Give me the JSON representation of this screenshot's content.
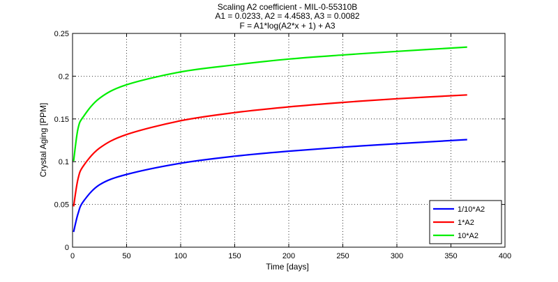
{
  "chart_data": {
    "type": "line",
    "title": "Scaling A2 coefficient - MIL-0-55310B",
    "subtitle_lines": [
      "A1 = 0.0233, A2 = 4.4583, A3 = 0.0082",
      "F = A1*log(A2*x + 1) + A3"
    ],
    "xlabel": "Time [days]",
    "ylabel": "Crystal Aging [PPM]",
    "xlim": [
      0,
      400
    ],
    "ylim": [
      0,
      0.25
    ],
    "xticks": [
      0,
      50,
      100,
      150,
      200,
      250,
      300,
      350,
      400
    ],
    "yticks": [
      0,
      0.05,
      0.1,
      0.15,
      0.2,
      0.25
    ],
    "xtick_labels": [
      "0",
      "50",
      "100",
      "150",
      "200",
      "250",
      "300",
      "350",
      "400"
    ],
    "ytick_labels": [
      "0",
      "0.05",
      "0.1",
      "0.15",
      "0.2",
      "0.25"
    ],
    "grid": true,
    "legend_position": "bottom-right",
    "series": [
      {
        "name": "1/10*A2",
        "color": "#0000ff",
        "x": [
          1,
          5,
          10,
          25,
          50,
          100,
          150,
          200,
          250,
          300,
          365
        ],
        "y": [
          0.0178,
          0.0389,
          0.0535,
          0.073,
          0.0851,
          0.0982,
          0.1064,
          0.1123,
          0.117,
          0.121,
          0.1258
        ]
      },
      {
        "name": "1*A2",
        "color": "#ff0000",
        "x": [
          1,
          5,
          10,
          25,
          50,
          100,
          150,
          200,
          250,
          300,
          365
        ],
        "y": [
          0.0477,
          0.0795,
          0.095,
          0.1159,
          0.1318,
          0.1479,
          0.1574,
          0.1641,
          0.1693,
          0.1736,
          0.1781
        ]
      },
      {
        "name": "10*A2",
        "color": "#00ee00",
        "x": [
          1,
          5,
          10,
          25,
          50,
          100,
          150,
          200,
          250,
          300,
          365
        ],
        "y": [
          0.1008,
          0.1383,
          0.1526,
          0.1742,
          0.19,
          0.205,
          0.2132,
          0.22,
          0.2248,
          0.229,
          0.234
        ]
      }
    ]
  }
}
